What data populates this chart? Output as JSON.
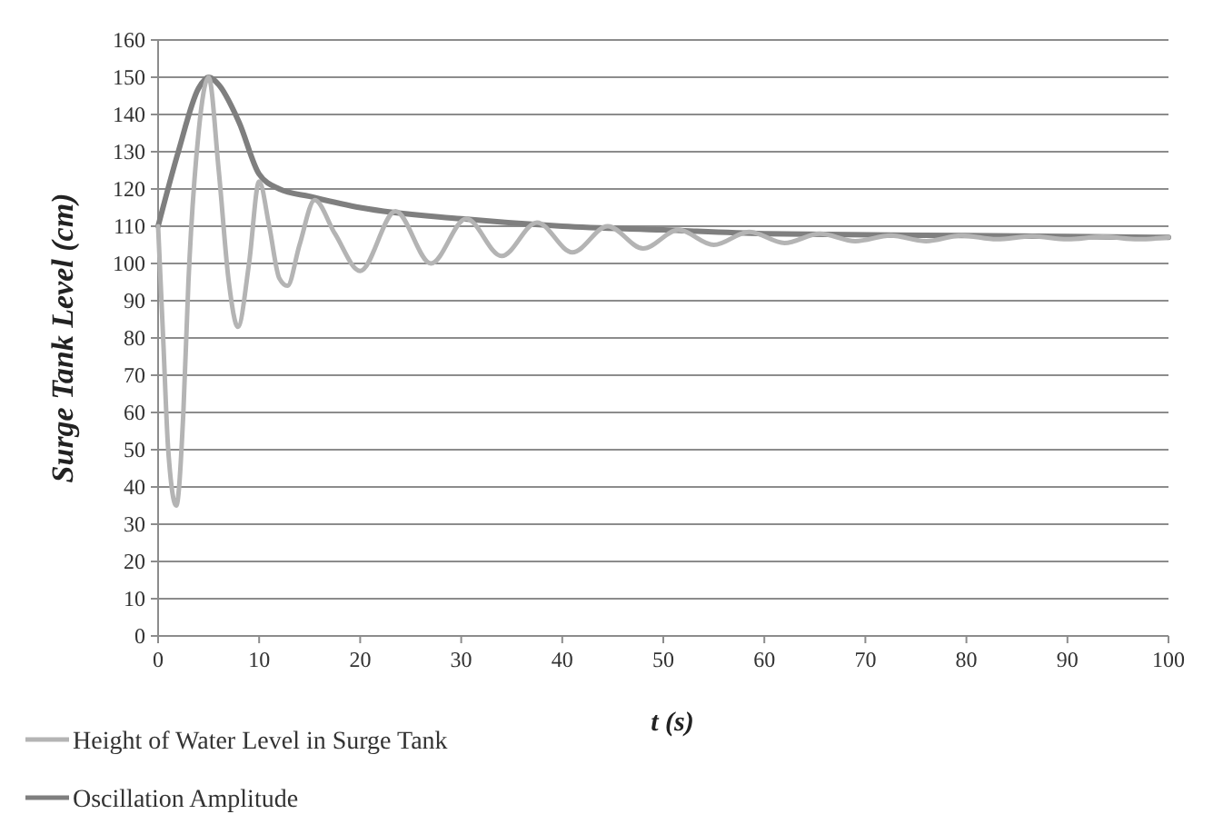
{
  "chart_data": {
    "type": "line",
    "xlabel": "t (s)",
    "ylabel": "Surge Tank Level (cm)",
    "xlim": [
      0,
      100
    ],
    "xticks": [
      0,
      10,
      20,
      30,
      40,
      50,
      60,
      70,
      80,
      90,
      100
    ],
    "ylim": [
      0,
      160
    ],
    "yticks": [
      0,
      10,
      20,
      30,
      40,
      50,
      60,
      70,
      80,
      90,
      100,
      110,
      120,
      130,
      140,
      150,
      160
    ],
    "grid": "y",
    "legend": "bottom left",
    "marker": "none",
    "line_style": "solid",
    "series": [
      {
        "name": "Height of Water Level in Surge Tank",
        "color": "#b4b4b4",
        "x": [
          0,
          0.5,
          1,
          1.8,
          2.5,
          3,
          4,
          5,
          6,
          7,
          7.9,
          9,
          10,
          11,
          12,
          12.8,
          14,
          15.5,
          17.5,
          20,
          23.5,
          27,
          30.5,
          34,
          37.5,
          41,
          44.5,
          48,
          51.5,
          55,
          58.5,
          62,
          65.5,
          69,
          72.5,
          76,
          79.5,
          83,
          86.5,
          90,
          93.5,
          97,
          100
        ],
        "values": [
          110,
          80,
          50,
          35,
          60,
          95,
          135,
          150,
          125,
          95,
          83,
          100,
          122,
          110,
          96,
          94,
          105,
          117,
          108,
          98,
          114,
          100,
          112,
          102,
          111,
          103,
          110,
          104,
          109,
          105,
          108.5,
          105.5,
          108,
          106,
          107.5,
          106,
          107.5,
          106.5,
          107.3,
          106.5,
          107.2,
          106.5,
          107
        ]
      },
      {
        "name": "Oscillation Amplitude",
        "color": "#7f7f7f",
        "x": [
          0,
          2,
          4,
          5,
          6,
          8,
          10,
          12,
          15,
          20,
          30,
          40,
          50,
          60,
          80,
          100
        ],
        "values": [
          110,
          130,
          147,
          150,
          148,
          138,
          124,
          120,
          118,
          115,
          112,
          110,
          109,
          108,
          107.5,
          107
        ]
      }
    ]
  }
}
